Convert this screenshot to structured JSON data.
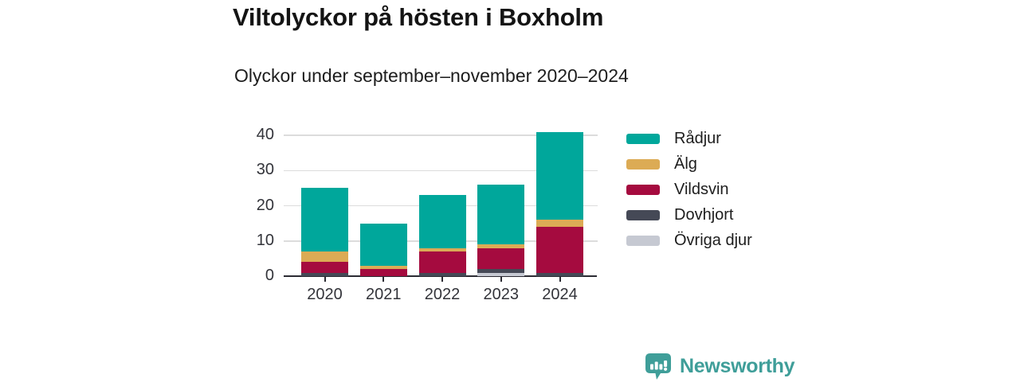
{
  "header": {
    "title": "Viltolyckor på hösten i Boxholm",
    "subtitle": "Olyckor under september–november 2020–2024"
  },
  "chart_data": {
    "type": "bar",
    "stacked": true,
    "title": "Viltolyckor på hösten i Boxholm",
    "subtitle": "Olyckor under september–november 2020–2024",
    "categories": [
      "2020",
      "2021",
      "2022",
      "2023",
      "2024"
    ],
    "series": [
      {
        "name": "Rådjur",
        "color": "#00a79b",
        "values": [
          18,
          12,
          15,
          17,
          25
        ]
      },
      {
        "name": "Älg",
        "color": "#dcab55",
        "values": [
          3,
          1,
          1,
          1,
          2
        ]
      },
      {
        "name": "Vildsvin",
        "color": "#a50b3f",
        "values": [
          3,
          2,
          6,
          6,
          13
        ]
      },
      {
        "name": "Dovhjort",
        "color": "#454956",
        "values": [
          1,
          0,
          1,
          1,
          1
        ]
      },
      {
        "name": "Övriga djur",
        "color": "#c6c9d2",
        "values": [
          0,
          0,
          0,
          1,
          0
        ]
      }
    ],
    "totals": [
      25,
      15,
      23,
      26,
      41
    ],
    "xlabel": "",
    "ylabel": "",
    "ylim": [
      0,
      40
    ],
    "yticks": [
      0,
      10,
      20,
      30,
      40
    ],
    "grid": "horizontal",
    "legend_position": "right",
    "stack_order_bottom_to_top": [
      "Övriga djur",
      "Dovhjort",
      "Vildsvin",
      "Älg",
      "Rådjur"
    ]
  },
  "footer": {
    "brand": "Newsworthy",
    "brand_color": "#3f9e99"
  }
}
